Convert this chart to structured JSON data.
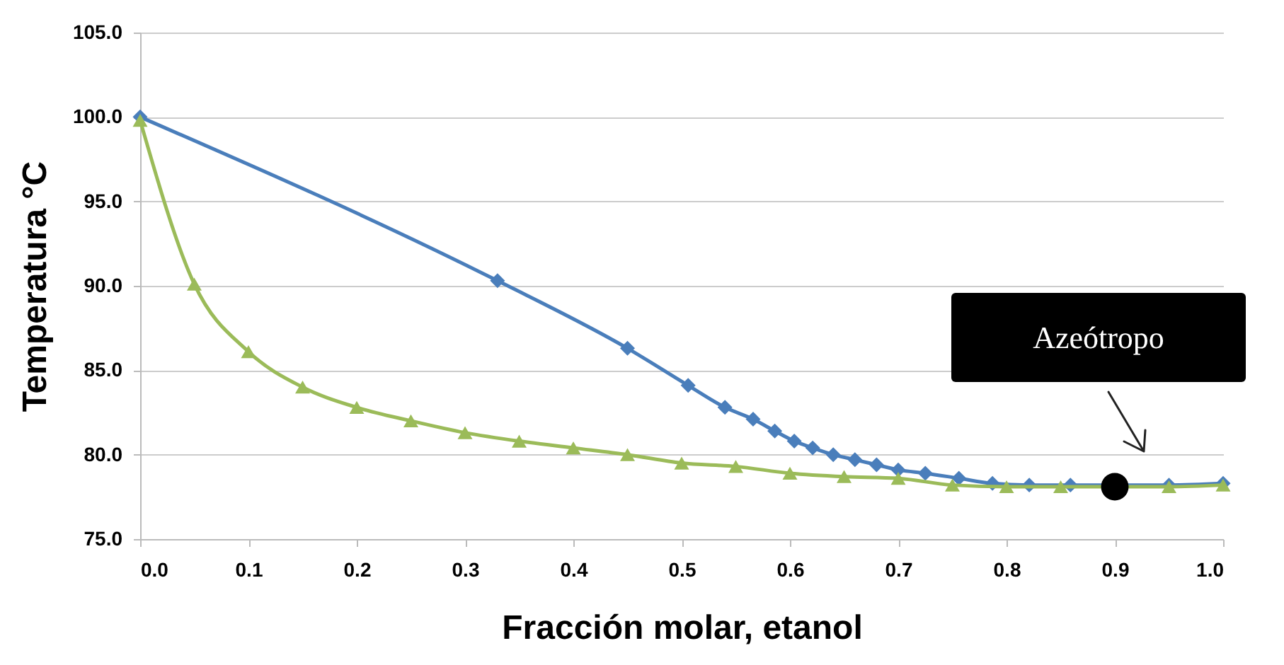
{
  "chart_data": {
    "type": "line",
    "xlabel": "Fracción molar, etanol",
    "ylabel": "Temperatura °C",
    "xlim": [
      0,
      1
    ],
    "ylim": [
      75,
      105
    ],
    "xticks": [
      {
        "value": 0,
        "label": "0.0"
      },
      0.1,
      0.2,
      0.3,
      0.4,
      0.5,
      0.6,
      0.7,
      0.8,
      0.9,
      {
        "value": 1,
        "label": "1.0"
      }
    ],
    "yticks": [
      {
        "value": 75,
        "label": "75.0"
      },
      {
        "value": 80,
        "label": "80.0"
      },
      {
        "value": 85,
        "label": "85.0"
      },
      {
        "value": 90,
        "label": "90.0"
      },
      {
        "value": 95,
        "label": "95.0"
      },
      {
        "value": 100,
        "label": "100.0"
      },
      {
        "value": 105,
        "label": "105.0"
      }
    ],
    "grid": "y",
    "series": [
      {
        "color": "#4a7ebb",
        "marker": "diamond",
        "x": [
          0,
          0.33,
          0.45,
          0.506,
          0.54,
          0.566,
          0.586,
          0.604,
          0.621,
          0.64,
          0.66,
          0.68,
          0.7,
          0.725,
          0.756,
          0.787,
          0.821,
          0.859,
          0.95,
          1.0
        ],
        "values": [
          100,
          90.3,
          86.3,
          84.1,
          82.8,
          82.1,
          81.4,
          80.8,
          80.4,
          80.0,
          79.7,
          79.4,
          79.1,
          78.9,
          78.6,
          78.3,
          78.2,
          78.2,
          78.2,
          78.3
        ]
      },
      {
        "color": "#9bbb59",
        "marker": "triangle",
        "x": [
          0,
          0.05,
          0.1,
          0.15,
          0.2,
          0.25,
          0.3,
          0.35,
          0.4,
          0.45,
          0.5,
          0.55,
          0.6,
          0.65,
          0.7,
          0.75,
          0.8,
          0.85,
          0.95,
          1.0
        ],
        "values": [
          99.8,
          90.1,
          86.1,
          84.0,
          82.8,
          82.0,
          81.3,
          80.8,
          80.4,
          80.0,
          79.5,
          79.3,
          78.9,
          78.7,
          78.6,
          78.2,
          78.1,
          78.1,
          78.1,
          78.2
        ]
      },
      {
        "type": "scatter",
        "color": "#000000",
        "marker": "circle",
        "x": [
          0.9
        ],
        "values": [
          78.1
        ]
      }
    ],
    "annotations": [
      "Azeótropo"
    ]
  }
}
